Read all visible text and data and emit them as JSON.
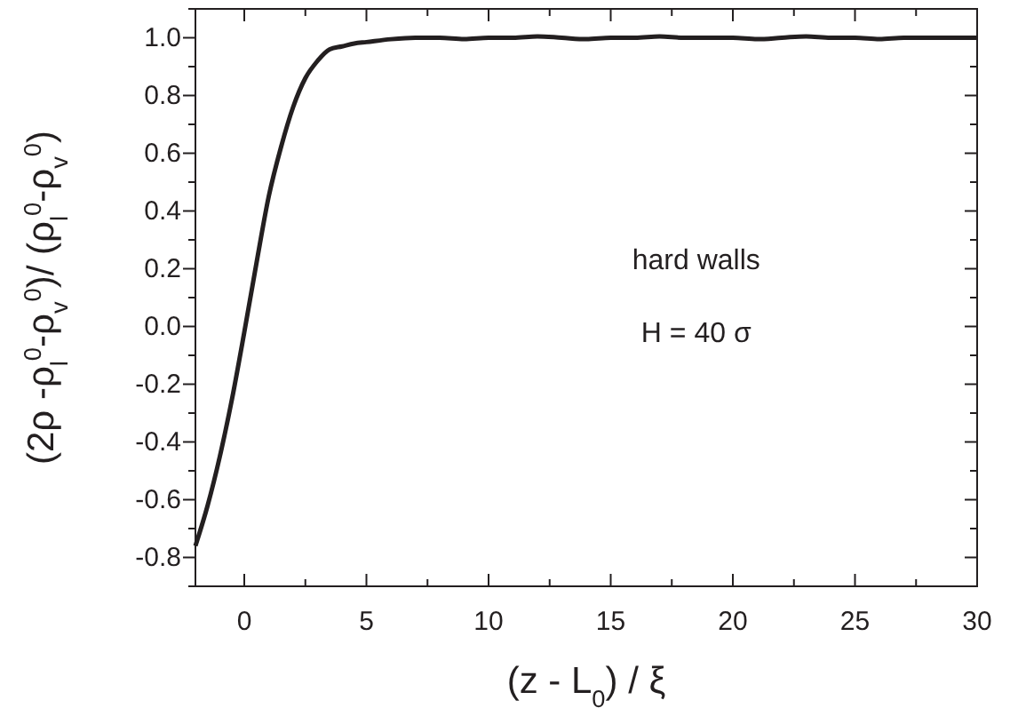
{
  "chart_data": {
    "type": "line",
    "xlabel": "(z - L$_{0}$) / ξ",
    "ylabel": "(2ρ -ρ$_{l}$$^{0}$-ρ$_{v}$$^{0}$)/ (ρ$_{l}$$^{0}$-ρ$_{v}$$^{0}$)",
    "xlim": [
      -2,
      30
    ],
    "ylim": [
      -0.9,
      1.1
    ],
    "xticks": [
      0,
      {
        "value": 2.5,
        "label": null
      },
      5,
      {
        "value": 7.5,
        "label": null
      },
      10,
      {
        "value": 12.5,
        "label": null
      },
      15,
      {
        "value": 17.5,
        "label": null
      },
      20,
      {
        "value": 22.5,
        "label": null
      },
      25,
      {
        "value": 27.5,
        "label": null
      },
      30
    ],
    "yticks": [
      {
        "value": -0.9,
        "label": null
      },
      {
        "value": -0.8,
        "label": "-0.8"
      },
      {
        "value": -0.7,
        "label": null
      },
      {
        "value": -0.6,
        "label": "-0.6"
      },
      {
        "value": -0.5,
        "label": null
      },
      {
        "value": -0.4,
        "label": "-0.4"
      },
      {
        "value": -0.3,
        "label": null
      },
      {
        "value": -0.2,
        "label": "-0.2"
      },
      {
        "value": -0.1,
        "label": null
      },
      {
        "value": 0,
        "label": "0.0"
      },
      {
        "value": 0.1,
        "label": null
      },
      {
        "value": 0.2,
        "label": "0.2"
      },
      {
        "value": 0.3,
        "label": null
      },
      {
        "value": 0.4,
        "label": "0.4"
      },
      {
        "value": 0.5,
        "label": null
      },
      {
        "value": 0.6,
        "label": "0.6"
      },
      {
        "value": 0.7,
        "label": null
      },
      {
        "value": 0.8,
        "label": "0.8"
      },
      {
        "value": 0.9,
        "label": null
      },
      {
        "value": 1.0,
        "label": "1.0"
      },
      {
        "value": 1.1,
        "label": null
      }
    ],
    "marker": "none",
    "line_style": "solid",
    "annotations": [
      "hard walls",
      "H = 40 σ"
    ],
    "series": [
      {
        "color": "#231f20",
        "x": [
          -2,
          -1.5,
          -1,
          -0.5,
          0,
          0.5,
          1,
          1.5,
          2,
          2.5,
          3,
          3.5,
          4,
          4.5,
          5,
          6,
          7,
          8,
          9,
          10,
          11,
          12,
          13,
          14,
          15,
          16,
          17,
          18,
          19,
          20,
          21,
          22,
          23,
          24,
          25,
          26,
          27,
          28,
          29,
          30
        ],
        "values": [
          -0.76,
          -0.62,
          -0.45,
          -0.25,
          -0.02,
          0.22,
          0.45,
          0.62,
          0.76,
          0.86,
          0.92,
          0.96,
          0.97,
          0.98,
          0.985,
          0.995,
          1.0,
          1.0,
          0.995,
          1.0,
          1.0,
          1.005,
          1.0,
          0.995,
          1.0,
          1.0,
          1.005,
          1.0,
          1.0,
          1.0,
          0.995,
          1.0,
          1.005,
          1.0,
          1.0,
          0.995,
          1.0,
          1.0,
          1.0,
          1.0
        ]
      }
    ]
  }
}
